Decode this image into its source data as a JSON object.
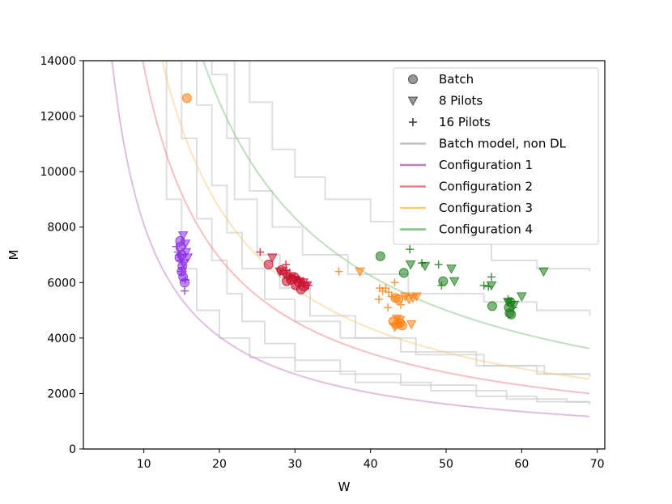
{
  "chart_data": {
    "type": "scatter",
    "xlabel": "W",
    "ylabel": "M",
    "xlim": [
      2,
      71
    ],
    "ylim": [
      0,
      14000
    ],
    "xticks": [
      10,
      20,
      30,
      40,
      50,
      60,
      70
    ],
    "yticks": [
      0,
      2000,
      4000,
      6000,
      8000,
      10000,
      12000,
      14000
    ],
    "legend_position": "top-right",
    "legend": [
      {
        "label": "Batch",
        "kind": "circle",
        "color": "#555555"
      },
      {
        "label": "8 Pilots",
        "kind": "triangle",
        "color": "#555555"
      },
      {
        "label": "16 Pilots",
        "kind": "plus",
        "color": "#555555"
      },
      {
        "label": "Batch model, non DL",
        "kind": "line",
        "color": "#c0c0c0"
      },
      {
        "label": "Configuration 1",
        "kind": "line",
        "color": "#bf7fbf"
      },
      {
        "label": "Configuration 2",
        "kind": "line",
        "color": "#f08080"
      },
      {
        "label": "Configuration 3",
        "kind": "line",
        "color": "#f7c97e"
      },
      {
        "label": "Configuration 4",
        "kind": "line",
        "color": "#7fbf7f"
      }
    ],
    "model_curves": [
      {
        "name": "Configuration 1",
        "color": "#bf7fbf",
        "k": 81000
      },
      {
        "name": "Configuration 2",
        "color": "#f08080",
        "k": 138000
      },
      {
        "name": "Configuration 3",
        "color": "#f7c97e",
        "k": 174000
      },
      {
        "name": "Configuration 4",
        "color": "#7fbf7f",
        "k": 250000
      }
    ],
    "step_curves": [
      {
        "name": "Batch model, non DL",
        "points": [
          [
            5.5,
            14000
          ],
          [
            14,
            14000
          ],
          [
            15,
            11200
          ],
          [
            17,
            8300
          ],
          [
            19,
            6800
          ],
          [
            21,
            5600
          ],
          [
            23,
            4600
          ],
          [
            26,
            3800
          ],
          [
            30,
            3200
          ],
          [
            36,
            2700
          ],
          [
            44,
            2300
          ],
          [
            54,
            1900
          ],
          [
            62,
            1700
          ],
          [
            69,
            1600
          ]
        ]
      },
      {
        "name": "Batch model, non DL",
        "points": [
          [
            6.5,
            14000
          ],
          [
            16,
            14000
          ],
          [
            17,
            12400
          ],
          [
            19,
            9500
          ],
          [
            21,
            7800
          ],
          [
            23,
            6500
          ],
          [
            26,
            5400
          ],
          [
            30,
            4600
          ],
          [
            36,
            4000
          ],
          [
            44,
            3500
          ],
          [
            54,
            3000
          ],
          [
            62,
            2700
          ],
          [
            69,
            2600
          ]
        ]
      },
      {
        "name": "Batch model, non DL",
        "points": [
          [
            9,
            14000
          ],
          [
            18,
            14000
          ],
          [
            19,
            13500
          ],
          [
            21,
            11200
          ],
          [
            24,
            9300
          ],
          [
            27,
            8000
          ],
          [
            31,
            7000
          ],
          [
            37,
            6300
          ],
          [
            45,
            5600
          ],
          [
            55,
            5300
          ],
          [
            62,
            5000
          ],
          [
            69,
            4800
          ]
        ]
      },
      {
        "name": "Batch model, non DL",
        "points": [
          [
            12,
            14000
          ],
          [
            22,
            14000
          ],
          [
            24,
            12500
          ],
          [
            27,
            10800
          ],
          [
            30,
            9800
          ],
          [
            34,
            9000
          ],
          [
            40,
            8200
          ],
          [
            48,
            7400
          ],
          [
            56,
            6800
          ],
          [
            62,
            6500
          ],
          [
            69,
            6400
          ]
        ]
      },
      {
        "name": "Batch model, non DL",
        "points": [
          [
            10,
            14000
          ],
          [
            20,
            14000
          ],
          [
            22,
            9000
          ],
          [
            25,
            7000
          ],
          [
            28,
            5800
          ],
          [
            32,
            4800
          ],
          [
            38,
            4000
          ],
          [
            46,
            3400
          ],
          [
            55,
            3000
          ],
          [
            63,
            2700
          ],
          [
            69,
            2700
          ]
        ]
      },
      {
        "name": "Batch model, non DL",
        "points": [
          [
            5,
            14000
          ],
          [
            12,
            14000
          ],
          [
            13,
            9000
          ],
          [
            15,
            6500
          ],
          [
            17,
            5000
          ],
          [
            20,
            4000
          ],
          [
            24,
            3300
          ],
          [
            30,
            2800
          ],
          [
            38,
            2400
          ],
          [
            48,
            2100
          ],
          [
            58,
            1800
          ],
          [
            66,
            1700
          ],
          [
            69,
            1700
          ]
        ]
      }
    ],
    "series": [
      {
        "name": "Configuration 1",
        "color": "#8a2be2",
        "batch": [
          [
            14.8,
            7500
          ],
          [
            14.9,
            7300
          ],
          [
            15.0,
            7000
          ],
          [
            14.7,
            6900
          ],
          [
            15.1,
            6600
          ],
          [
            15.0,
            6400
          ],
          [
            15.2,
            6200
          ],
          [
            15.4,
            6000
          ]
        ],
        "pilots8": [
          [
            15.2,
            7700
          ],
          [
            15.5,
            7400
          ],
          [
            15.6,
            7100
          ],
          [
            15.8,
            6900
          ],
          [
            15.3,
            6700
          ]
        ],
        "pilots16": [
          [
            14.3,
            7300
          ],
          [
            14.5,
            7100
          ],
          [
            14.7,
            7000
          ],
          [
            14.9,
            6800
          ],
          [
            15.0,
            6400
          ],
          [
            15.5,
            6100
          ],
          [
            15.4,
            5700
          ]
        ]
      },
      {
        "name": "Configuration 2",
        "color": "#c8102e",
        "batch": [
          [
            26.5,
            6650
          ],
          [
            28.2,
            6450
          ],
          [
            28.9,
            6050
          ],
          [
            29.5,
            6100
          ],
          [
            30.1,
            5900
          ],
          [
            30.5,
            6000
          ],
          [
            30.8,
            5750
          ],
          [
            31.2,
            5850
          ],
          [
            29.9,
            6200
          ]
        ],
        "pilots8": [
          [
            27.0,
            6900
          ],
          [
            28.0,
            6400
          ],
          [
            28.6,
            6300
          ],
          [
            29.0,
            6200
          ],
          [
            29.4,
            6150
          ],
          [
            30.0,
            6100
          ],
          [
            30.6,
            6050
          ],
          [
            31.1,
            6000
          ],
          [
            31.6,
            5900
          ]
        ],
        "pilots16": [
          [
            25.4,
            7100
          ],
          [
            28.8,
            6650
          ],
          [
            28.9,
            6450
          ],
          [
            29.3,
            6350
          ],
          [
            30.0,
            6200
          ],
          [
            30.6,
            6100
          ],
          [
            31.2,
            6000
          ],
          [
            31.8,
            5900
          ]
        ]
      },
      {
        "name": "Configuration 3",
        "color": "#ff7f0e",
        "batch": [
          [
            15.7,
            12650
          ],
          [
            43.3,
            5450
          ],
          [
            43.7,
            5400
          ],
          [
            43.0,
            4600
          ],
          [
            43.5,
            4500
          ],
          [
            43.9,
            4550
          ],
          [
            44.2,
            4450
          ]
        ],
        "pilots8": [
          [
            38.6,
            6400
          ],
          [
            43.5,
            4700
          ],
          [
            43.9,
            4650
          ],
          [
            44.6,
            5500
          ],
          [
            45.1,
            5400
          ],
          [
            45.6,
            5450
          ],
          [
            46.1,
            5500
          ],
          [
            45.4,
            4500
          ],
          [
            43.2,
            4400
          ]
        ],
        "pilots16": [
          [
            35.8,
            6400
          ],
          [
            41.2,
            5800
          ],
          [
            41.6,
            5700
          ],
          [
            42.0,
            5800
          ],
          [
            42.4,
            5650
          ],
          [
            42.8,
            5500
          ],
          [
            43.2,
            6000
          ],
          [
            42.3,
            5100
          ],
          [
            41.1,
            5400
          ],
          [
            44.0,
            5200
          ]
        ]
      },
      {
        "name": "Configuration 4",
        "color": "#1a7a1a",
        "batch": [
          [
            41.3,
            6950
          ],
          [
            44.4,
            6350
          ],
          [
            49.6,
            6050
          ],
          [
            56.1,
            5150
          ],
          [
            58.6,
            4850
          ],
          [
            58.4,
            4900
          ],
          [
            58.5,
            5300
          ],
          [
            58.3,
            5100
          ]
        ],
        "pilots8": [
          [
            45.3,
            6650
          ],
          [
            47.2,
            6600
          ],
          [
            50.7,
            6500
          ],
          [
            51.1,
            6050
          ],
          [
            56.0,
            5900
          ],
          [
            58.2,
            5300
          ],
          [
            59.0,
            5200
          ],
          [
            60.0,
            5500
          ],
          [
            62.9,
            6400
          ]
        ],
        "pilots16": [
          [
            45.2,
            7200
          ],
          [
            46.8,
            6700
          ],
          [
            49.0,
            6650
          ],
          [
            49.4,
            5900
          ],
          [
            55.0,
            5900
          ],
          [
            55.6,
            5850
          ],
          [
            56.0,
            6200
          ],
          [
            58.2,
            5400
          ],
          [
            58.6,
            5300
          ],
          [
            58.9,
            5100
          ]
        ]
      }
    ]
  }
}
